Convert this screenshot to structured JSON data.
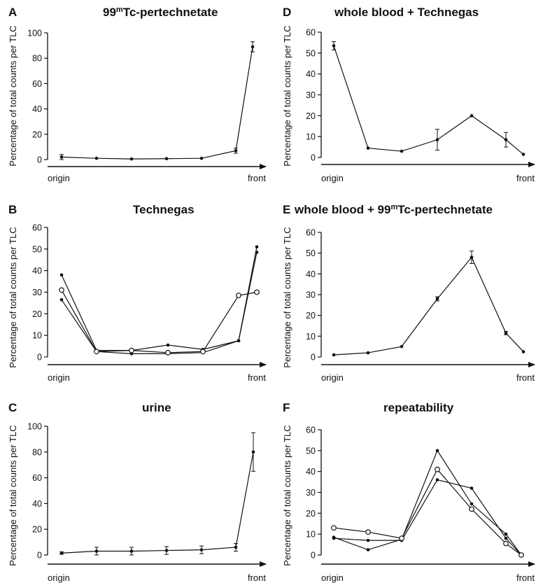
{
  "figure": {
    "ylabel": "Percentage of total counts per TLC",
    "origin_label": "origin",
    "front_label": "front"
  },
  "chart_data": [
    {
      "panel": "A",
      "type": "line",
      "title_main": "99",
      "title_sup": "m",
      "title_rest": "Tc-pertechnetate",
      "ylim": [
        0,
        100
      ],
      "yticks": [
        0,
        20,
        40,
        60,
        80,
        100
      ],
      "x": [
        0,
        1,
        2,
        3,
        4,
        5,
        5.5
      ],
      "series": [
        {
          "marker": "filled",
          "values": [
            2,
            1,
            0.5,
            0.7,
            1,
            7,
            89
          ],
          "errors": [
            2,
            0,
            0,
            0,
            0,
            2,
            4
          ]
        }
      ]
    },
    {
      "panel": "B",
      "type": "line",
      "title_main": "Technegas",
      "title_sup": "",
      "title_rest": "",
      "ylim": [
        0,
        60
      ],
      "yticks": [
        0,
        10,
        20,
        30,
        40,
        50,
        60
      ],
      "x": [
        0,
        1,
        2,
        3,
        4,
        5,
        5.5
      ],
      "series": [
        {
          "marker": "filled",
          "values": [
            38,
            3,
            3,
            5.5,
            3.5,
            7.5,
            51
          ],
          "errors": []
        },
        {
          "marker": "filled",
          "values": [
            26.5,
            2.5,
            1.5,
            1.5,
            2,
            7.5,
            48.5
          ],
          "errors": []
        },
        {
          "marker": "open",
          "values": [
            31,
            2.5,
            3,
            2,
            2.5,
            28.5,
            30
          ],
          "errors": []
        }
      ]
    },
    {
      "panel": "C",
      "type": "line",
      "title_main": "urine",
      "title_sup": "",
      "title_rest": "",
      "ylim": [
        0,
        100
      ],
      "yticks": [
        0,
        20,
        40,
        60,
        80,
        100
      ],
      "x": [
        0,
        1,
        2,
        3,
        4,
        5,
        5.5
      ],
      "series": [
        {
          "marker": "filled",
          "values": [
            1.5,
            3,
            3,
            3.5,
            4,
            6,
            80
          ],
          "errors": [
            1,
            3,
            3,
            3,
            3,
            3,
            15
          ]
        }
      ]
    },
    {
      "panel": "D",
      "type": "line",
      "title_main": "whole blood + Technegas",
      "title_sup": "",
      "title_rest": "",
      "ylim": [
        0,
        60
      ],
      "yticks": [
        0,
        10,
        20,
        30,
        40,
        50,
        60
      ],
      "x": [
        0,
        1,
        2,
        3,
        4,
        5,
        5.5
      ],
      "series": [
        {
          "marker": "filled",
          "values": [
            53.5,
            4.5,
            3,
            8.5,
            20,
            8.5,
            1.5
          ],
          "errors": [
            2,
            0,
            0,
            5,
            0,
            3.5,
            0
          ]
        }
      ]
    },
    {
      "panel": "E",
      "type": "line",
      "title_main": "whole blood + 99",
      "title_sup": "m",
      "title_rest": "Tc-pertechnetate",
      "ylim": [
        0,
        60
      ],
      "yticks": [
        0,
        10,
        20,
        30,
        40,
        50,
        60
      ],
      "x": [
        0,
        1,
        2,
        3,
        4,
        5,
        5.5
      ],
      "series": [
        {
          "marker": "filled",
          "values": [
            1,
            2,
            5,
            28,
            48,
            11.5,
            2.5
          ],
          "errors": [
            0,
            0,
            0,
            1,
            3,
            0.8,
            0
          ]
        }
      ]
    },
    {
      "panel": "F",
      "type": "line",
      "title_main": "repeatability",
      "title_sup": "",
      "title_rest": "",
      "ylim": [
        0,
        60
      ],
      "yticks": [
        0,
        10,
        20,
        30,
        40,
        50,
        60
      ],
      "x": [
        0,
        1,
        2,
        3,
        4,
        5,
        5.5
      ],
      "series": [
        {
          "marker": "filled",
          "values": [
            8.5,
            2.5,
            7.5,
            50,
            24.5,
            10,
            0
          ],
          "errors": []
        },
        {
          "marker": "filled",
          "values": [
            8,
            7,
            7,
            36,
            32,
            8,
            0
          ],
          "errors": []
        },
        {
          "marker": "open",
          "values": [
            13,
            11,
            8,
            41,
            22,
            5.5,
            0
          ],
          "errors": []
        }
      ]
    }
  ]
}
